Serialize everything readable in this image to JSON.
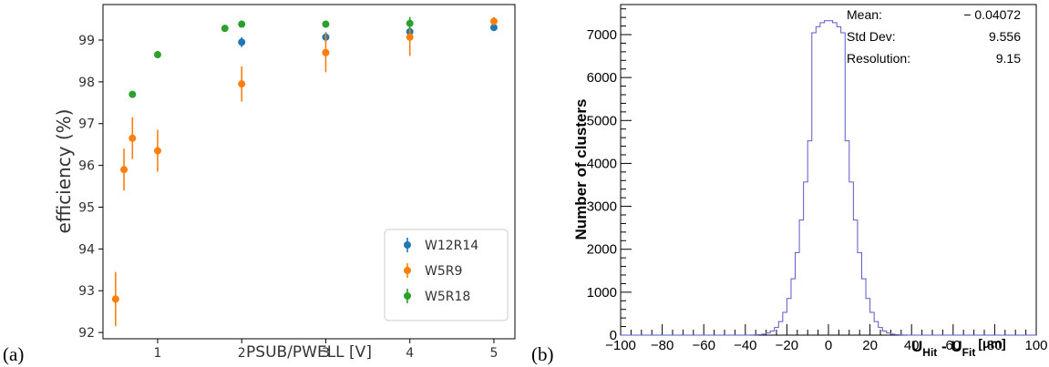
{
  "panel_a_label": "(a)",
  "panel_b_label": "(b)",
  "chart_data": [
    {
      "type": "scatter",
      "xlabel": "PSUB/PWELL [V]",
      "ylabel": "efficiency (%)",
      "xlim": [
        0.35,
        5.25
      ],
      "ylim": [
        91.85,
        99.85
      ],
      "xticks": [
        1,
        2,
        3,
        4,
        5
      ],
      "yticks": [
        92,
        93,
        94,
        95,
        96,
        97,
        98,
        99
      ],
      "legend_position": "lower-right",
      "series": [
        {
          "name": "W12R14",
          "color": "#1f77b4",
          "x": [
            2,
            3,
            4,
            5
          ],
          "y": [
            98.95,
            99.07,
            99.2,
            99.3
          ],
          "err": [
            0.12,
            0.12,
            0.1,
            0.08
          ]
        },
        {
          "name": "W5R9",
          "color": "#ff7f0e",
          "x": [
            0.5,
            0.6,
            0.7,
            1,
            2,
            3,
            4,
            5
          ],
          "y": [
            92.8,
            95.9,
            96.65,
            96.35,
            97.95,
            98.7,
            99.07,
            99.45
          ],
          "err": [
            0.65,
            0.5,
            0.5,
            0.5,
            0.42,
            0.47,
            0.45,
            0.1
          ]
        },
        {
          "name": "W5R18",
          "color": "#2ca02c",
          "x": [
            0.7,
            1,
            1.8,
            2,
            3,
            4
          ],
          "y": [
            97.7,
            98.65,
            99.28,
            99.38,
            99.38,
            99.4
          ],
          "err": [
            0.07,
            0.06,
            0.06,
            0.05,
            0.05,
            0.15
          ]
        }
      ]
    },
    {
      "type": "histogram",
      "xlabel_main_1": "U",
      "xlabel_sub_1": "Hit",
      "xlabel_sep": " - ",
      "xlabel_main_2": "U",
      "xlabel_sub_2": "Fit",
      "xlabel_unit": "[μm]",
      "ylabel": "Number of clusters",
      "xlim": [
        -100,
        100
      ],
      "ylim": [
        0,
        7700
      ],
      "xticks": [
        -100,
        -80,
        -60,
        -40,
        -20,
        0,
        20,
        40,
        60,
        80,
        100
      ],
      "yticks": [
        0,
        1000,
        2000,
        3000,
        4000,
        5000,
        6000,
        7000
      ],
      "line_color": "#5a5ac8",
      "mean": 0,
      "sigma": 9.556,
      "peak": 7330,
      "bin_width": 2,
      "stats": {
        "mean_label": "Mean:",
        "mean_value": "− 0.04072",
        "std_label": "Std Dev:",
        "std_value": "9.556",
        "res_label": "Resolution:",
        "res_value": "9.15"
      }
    }
  ]
}
